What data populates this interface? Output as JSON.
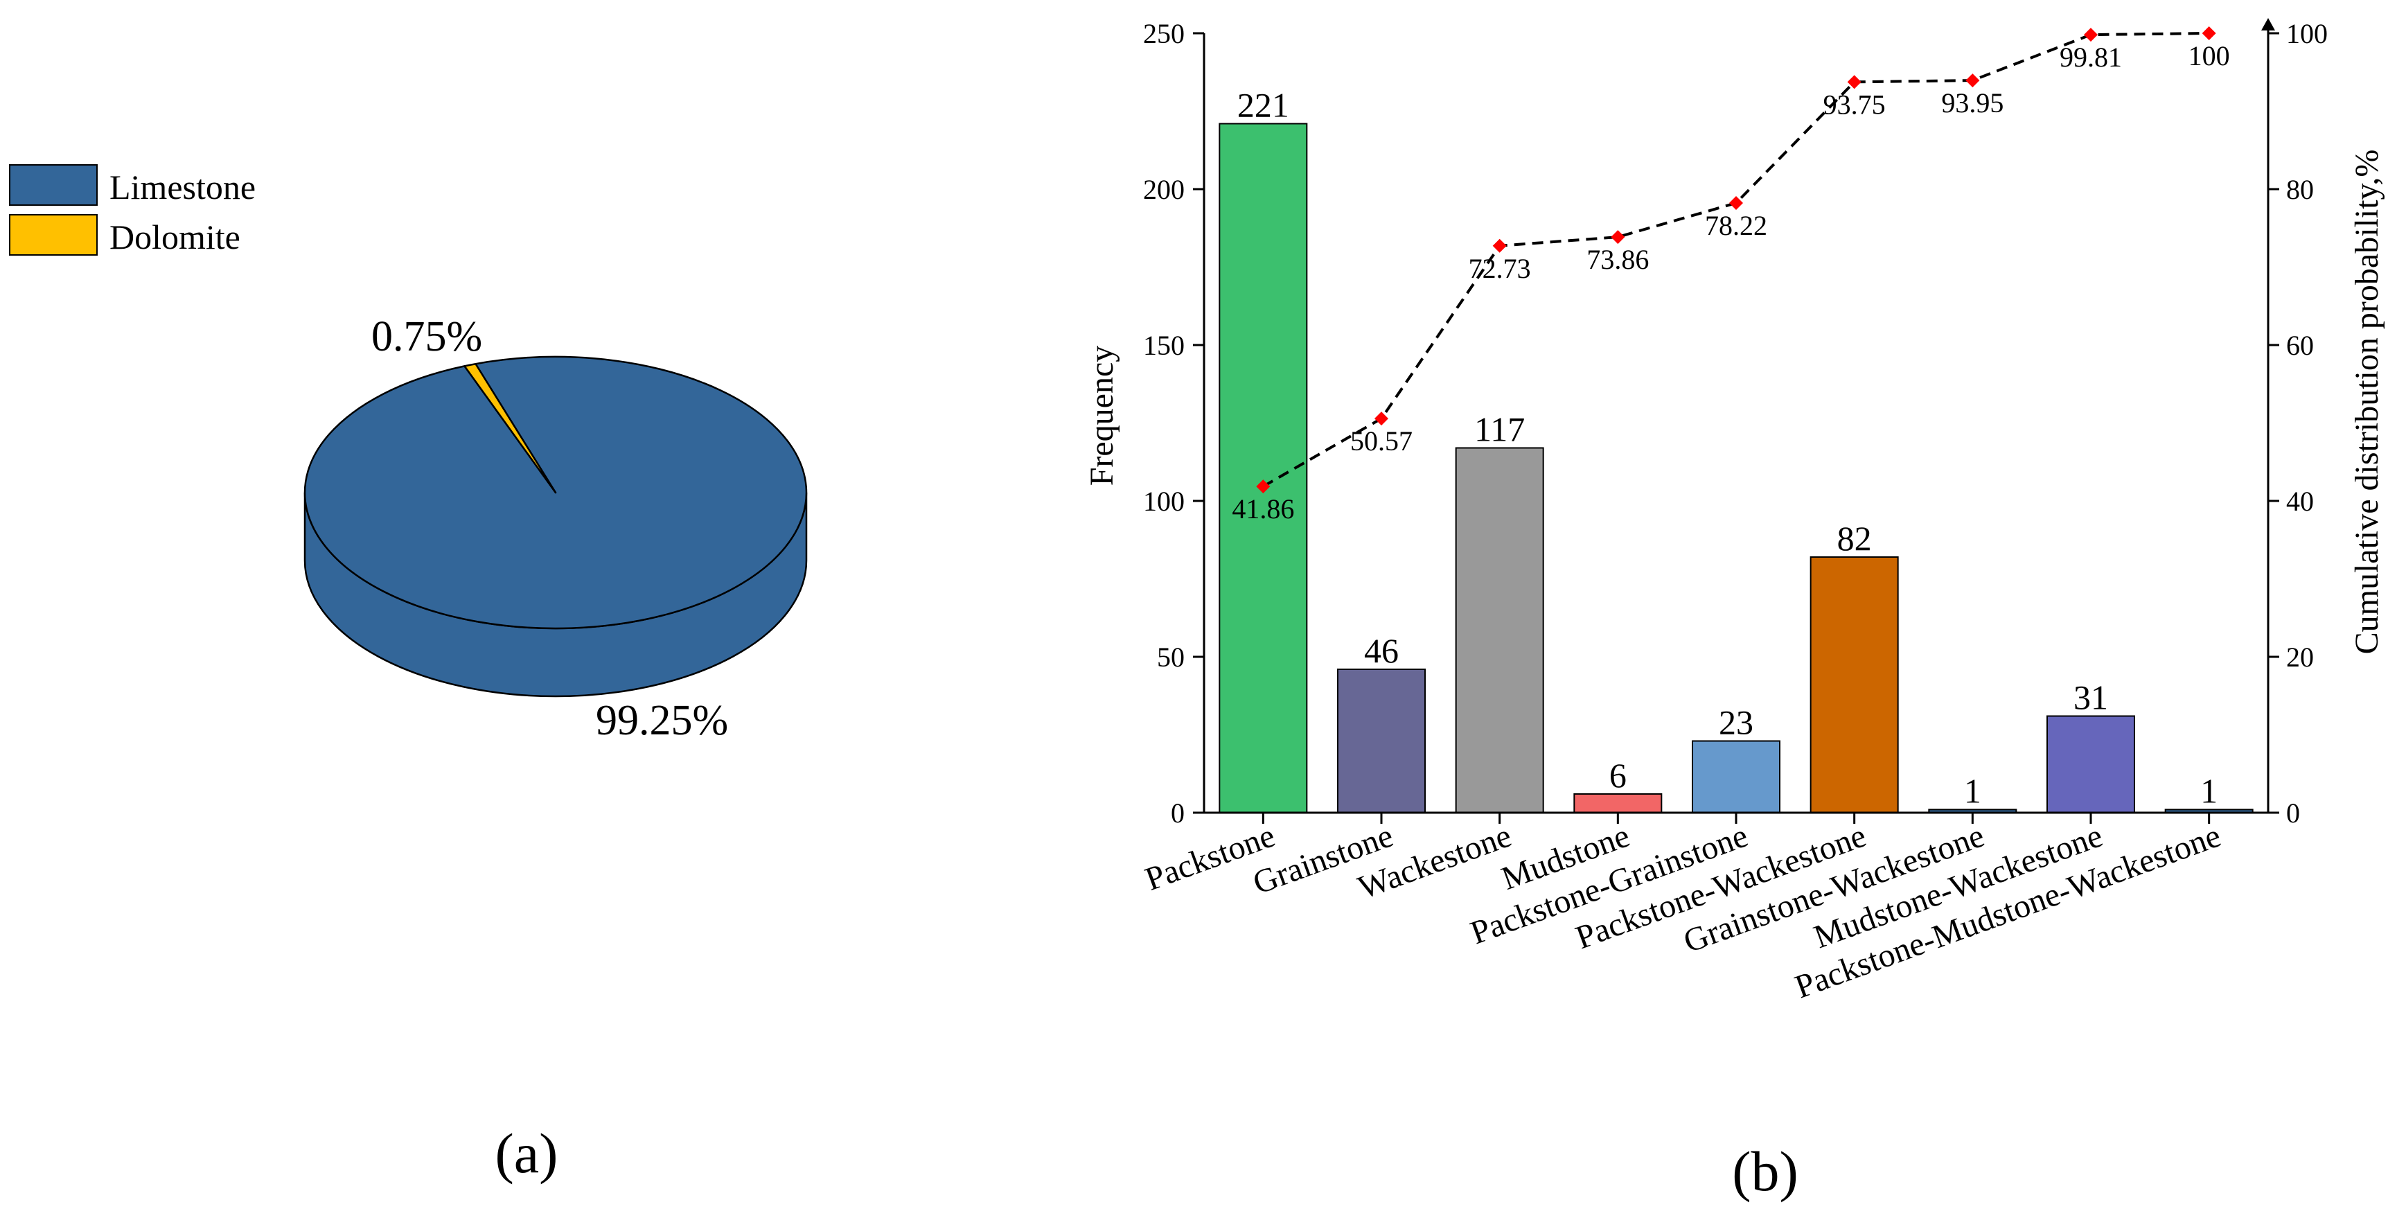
{
  "figure": {
    "panel_a_label": "(a)",
    "panel_b_label": "(b)"
  },
  "chart_data": [
    {
      "type": "pie",
      "style": "3d",
      "slices": [
        {
          "label": "Limestone",
          "value": 99.25,
          "display": "99.25%",
          "color": "#336699"
        },
        {
          "label": "Dolomite",
          "value": 0.75,
          "display": "0.75%",
          "color": "#FFC000"
        }
      ],
      "legend": [
        "Limestone",
        "Dolomite"
      ],
      "legend_position": "left"
    },
    {
      "type": "bar",
      "categories": [
        "Packstone",
        "Grainstone",
        "Wackestone",
        "Mudstone",
        "Packstone-Grainstone",
        "Packstone-Wackestone",
        "Grainstone-Wackestone",
        "Mudstone-Wackestone",
        "Packstone-Mudstone-Wackestone"
      ],
      "values": [
        221,
        46,
        117,
        6,
        23,
        82,
        1,
        31,
        1
      ],
      "bar_colors": [
        "#3CC06E",
        "#676795",
        "#999999",
        "#F26666",
        "#6699CC",
        "#CC6600",
        "#336699",
        "#6666BB",
        "#336699"
      ],
      "ylabel": "Frequency",
      "ylim": [
        0,
        250
      ],
      "yticks": [
        0,
        50,
        100,
        150,
        200,
        250
      ],
      "secondary_series": {
        "name": "Cumulative distribution probability,%",
        "type": "line",
        "style": "dashed",
        "marker": "diamond",
        "marker_color": "#FF0000",
        "values": [
          41.86,
          50.57,
          72.73,
          73.86,
          78.22,
          93.75,
          93.95,
          99.81,
          100
        ],
        "labels": [
          "41.86",
          "50.57",
          "72.73",
          "73.86",
          "78.22",
          "93.75",
          "93.95",
          "99.81",
          "100"
        ]
      },
      "y2label": "Cumulative distribution probability,%",
      "y2lim": [
        0,
        100
      ],
      "y2ticks": [
        0,
        20,
        40,
        60,
        80,
        100
      ]
    }
  ]
}
